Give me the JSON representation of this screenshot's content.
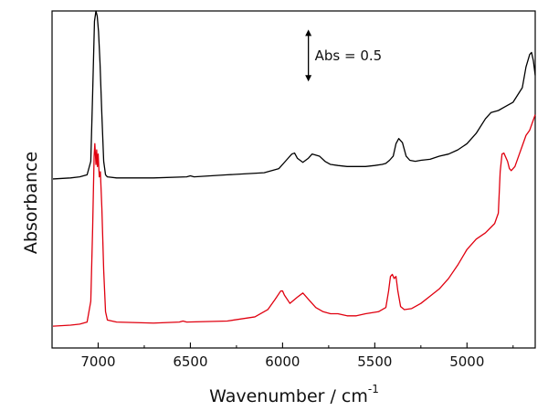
{
  "chart_data": {
    "type": "line",
    "xlabel": "Wavenumber / cm",
    "xlabel_superscript": "-1",
    "ylabel": "Absorbance",
    "xlim": [
      7250,
      4630
    ],
    "x_reversed": true,
    "ylim": [
      -0.25,
      3.0
    ],
    "y_ticks_visible": false,
    "x_ticks": [
      7000,
      6500,
      6000,
      5500,
      5000
    ],
    "grid": false,
    "annotation": {
      "text": "Abs = 0.5",
      "bar_value": 0.5,
      "x": 5860,
      "y_center": 2.57
    },
    "series": [
      {
        "color": "#000000",
        "x": [
          7245,
          7150,
          7100,
          7060,
          7040,
          7030,
          7020,
          7012,
          7005,
          6998,
          6990,
          6980,
          6970,
          6960,
          6950,
          6900,
          6700,
          6520,
          6500,
          6480,
          6300,
          6100,
          6020,
          5980,
          5950,
          5935,
          5920,
          5890,
          5860,
          5840,
          5800,
          5770,
          5740,
          5700,
          5650,
          5600,
          5550,
          5500,
          5460,
          5440,
          5420,
          5400,
          5385,
          5370,
          5350,
          5330,
          5310,
          5280,
          5250,
          5200,
          5150,
          5100,
          5050,
          5000,
          4950,
          4900,
          4870,
          4830,
          4800,
          4780,
          4750,
          4700,
          4680,
          4660,
          4650,
          4640,
          4630
        ],
        "y": [
          1.38,
          1.39,
          1.4,
          1.42,
          1.55,
          2.2,
          2.9,
          3.0,
          2.95,
          2.8,
          2.5,
          2.0,
          1.55,
          1.42,
          1.4,
          1.39,
          1.39,
          1.4,
          1.41,
          1.4,
          1.42,
          1.44,
          1.48,
          1.56,
          1.62,
          1.63,
          1.58,
          1.54,
          1.58,
          1.62,
          1.6,
          1.55,
          1.52,
          1.51,
          1.5,
          1.5,
          1.5,
          1.51,
          1.52,
          1.53,
          1.56,
          1.6,
          1.72,
          1.77,
          1.73,
          1.6,
          1.56,
          1.55,
          1.56,
          1.57,
          1.6,
          1.62,
          1.66,
          1.72,
          1.82,
          1.96,
          2.02,
          2.04,
          2.07,
          2.09,
          2.12,
          2.26,
          2.46,
          2.58,
          2.6,
          2.52,
          2.38
        ]
      },
      {
        "color": "#e0000f",
        "x": [
          7245,
          7150,
          7100,
          7060,
          7040,
          7030,
          7022,
          7018,
          7012,
          7008,
          7004,
          7000,
          6994,
          6988,
          6980,
          6970,
          6960,
          6950,
          6900,
          6700,
          6560,
          6540,
          6520,
          6300,
          6150,
          6080,
          6040,
          6010,
          6000,
          5990,
          5960,
          5920,
          5890,
          5880,
          5860,
          5820,
          5780,
          5740,
          5700,
          5650,
          5600,
          5550,
          5480,
          5440,
          5425,
          5415,
          5405,
          5395,
          5385,
          5375,
          5360,
          5340,
          5300,
          5250,
          5200,
          5150,
          5100,
          5050,
          5000,
          4950,
          4900,
          4850,
          4830,
          4820,
          4810,
          4800,
          4780,
          4770,
          4760,
          4740,
          4720,
          4700,
          4680,
          4660,
          4640,
          4630
        ],
        "y": [
          -0.04,
          -0.03,
          -0.02,
          0.0,
          0.2,
          0.9,
          1.6,
          1.72,
          1.52,
          1.66,
          1.5,
          1.62,
          1.4,
          1.45,
          1.1,
          0.5,
          0.1,
          0.02,
          0.0,
          -0.01,
          0.0,
          0.01,
          0.0,
          0.01,
          0.05,
          0.12,
          0.22,
          0.3,
          0.3,
          0.26,
          0.18,
          0.24,
          0.28,
          0.26,
          0.22,
          0.14,
          0.1,
          0.08,
          0.08,
          0.06,
          0.06,
          0.08,
          0.1,
          0.14,
          0.3,
          0.44,
          0.46,
          0.42,
          0.44,
          0.3,
          0.15,
          0.12,
          0.13,
          0.18,
          0.25,
          0.32,
          0.42,
          0.55,
          0.7,
          0.8,
          0.86,
          0.95,
          1.05,
          1.45,
          1.62,
          1.63,
          1.55,
          1.48,
          1.46,
          1.5,
          1.6,
          1.7,
          1.8,
          1.85,
          1.95,
          2.0
        ]
      }
    ]
  }
}
